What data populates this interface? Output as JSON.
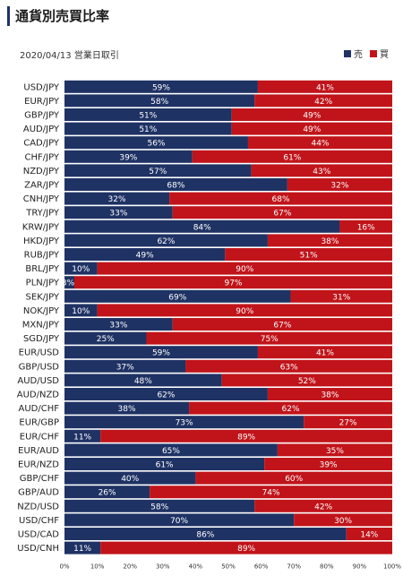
{
  "header": {
    "title": "通貨別売買比率"
  },
  "date_label": "2020/04/13 営業日取引",
  "legend": {
    "sell_label": "売",
    "buy_label": "買"
  },
  "colors": {
    "sell": "#1f3264",
    "buy": "#c0141a"
  },
  "chart_data": {
    "type": "bar",
    "orientation": "horizontal-stacked-100",
    "categories": [
      "USD/JPY",
      "EUR/JPY",
      "GBP/JPY",
      "AUD/JPY",
      "CAD/JPY",
      "CHF/JPY",
      "NZD/JPY",
      "ZAR/JPY",
      "CNH/JPY",
      "TRY/JPY",
      "KRW/JPY",
      "HKD/JPY",
      "RUB/JPY",
      "BRL/JPY",
      "PLN/JPY",
      "SEK/JPY",
      "NOK/JPY",
      "MXN/JPY",
      "SGD/JPY",
      "EUR/USD",
      "GBP/USD",
      "AUD/USD",
      "AUD/NZD",
      "AUD/CHF",
      "EUR/GBP",
      "EUR/CHF",
      "EUR/AUD",
      "EUR/NZD",
      "GBP/CHF",
      "GBP/AUD",
      "NZD/USD",
      "USD/CHF",
      "USD/CAD",
      "USD/CNH"
    ],
    "series": [
      {
        "name": "売",
        "values": [
          59,
          58,
          51,
          51,
          56,
          39,
          57,
          68,
          32,
          33,
          84,
          62,
          49,
          10,
          3,
          69,
          10,
          33,
          25,
          59,
          37,
          48,
          62,
          38,
          73,
          11,
          65,
          61,
          40,
          26,
          58,
          70,
          86,
          11
        ]
      },
      {
        "name": "買",
        "values": [
          41,
          42,
          49,
          49,
          44,
          61,
          43,
          32,
          68,
          67,
          16,
          38,
          51,
          90,
          97,
          31,
          90,
          67,
          75,
          41,
          63,
          52,
          38,
          62,
          27,
          89,
          35,
          39,
          60,
          74,
          42,
          30,
          14,
          89
        ]
      }
    ],
    "x_ticks": [
      "0%",
      "10%",
      "20%",
      "30%",
      "40%",
      "50%",
      "60%",
      "70%",
      "80%",
      "90%",
      "100%"
    ],
    "xlim": [
      0,
      100
    ],
    "legend_position": "top-right"
  }
}
